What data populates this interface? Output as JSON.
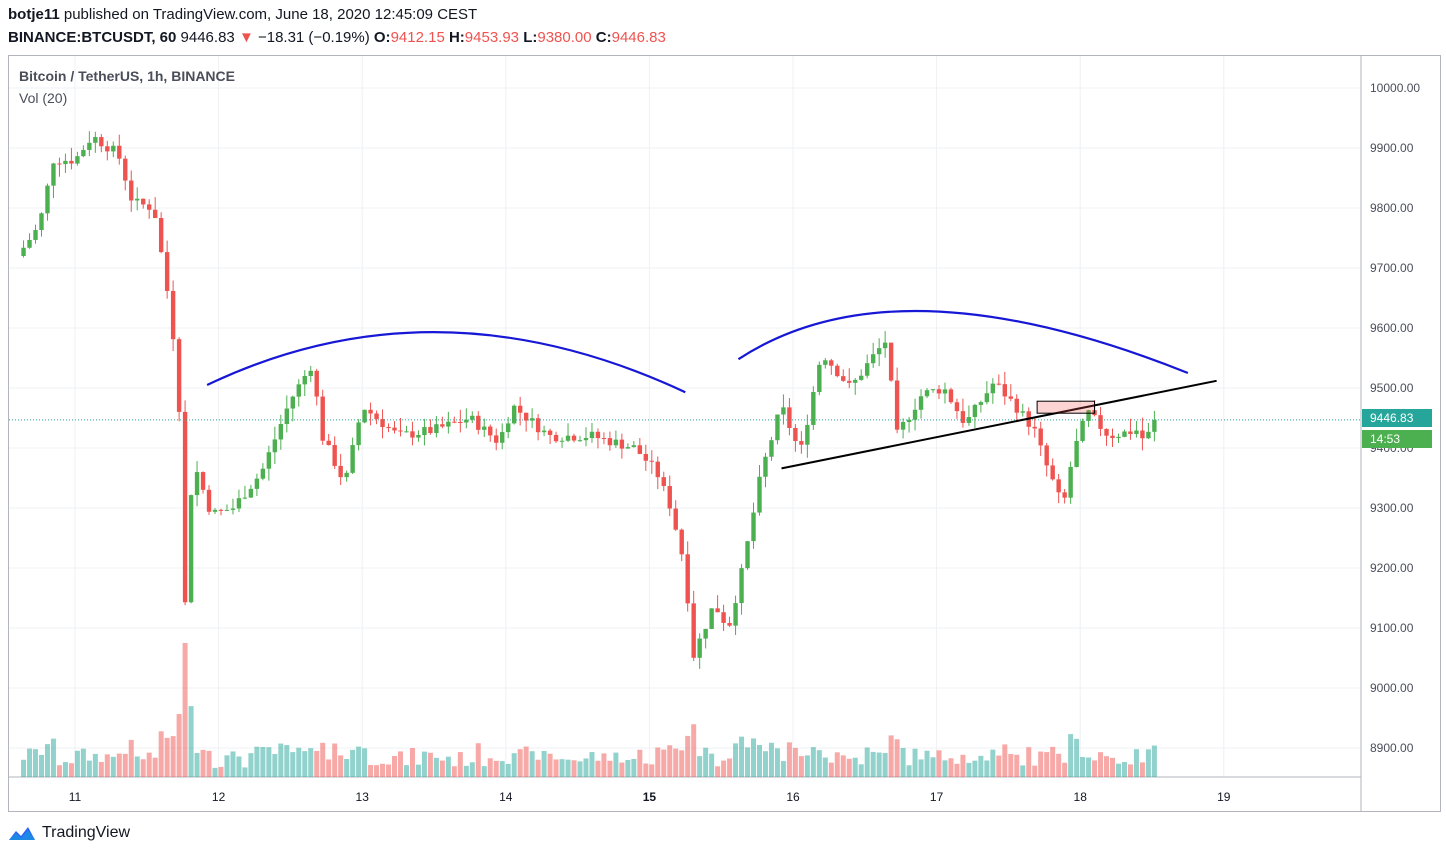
{
  "header": {
    "author": "botje11",
    "published": "published on TradingView.com, June 18, 2020 12:45:09 CEST",
    "symbol": "BINANCE:BTCUSDT, 60",
    "last": "9446.83",
    "arrow": "▼",
    "change": "−18.31 (−0.19%)",
    "o_label": "O:",
    "o_value": "9412.15",
    "h_label": "H:",
    "h_value": "9453.93",
    "l_label": "L:",
    "l_value": "9380.00",
    "c_label": "C:",
    "c_value": "9446.83"
  },
  "legend": {
    "title": "Bitcoin / TetherUS, 1h, BINANCE",
    "volume": "Vol (20)"
  },
  "price_tag": "9446.83",
  "countdown": "14:53",
  "footer": {
    "brand": "TradingView",
    "logo_icon": "tradingview-logo-icon"
  },
  "colors": {
    "up": "#26a69a",
    "down": "#ef5350",
    "up_wick": "#4caf50",
    "arc": "#1717d6",
    "trend": "#000000",
    "grid": "#eef0f3"
  },
  "chart_data": {
    "type": "candlestick",
    "symbol": "BTCUSDT",
    "interval": "1h",
    "x_ticks": [
      "11",
      "12",
      "13",
      "14",
      "15",
      "16",
      "17",
      "18",
      "19"
    ],
    "y_ticks": [
      "10000.00",
      "9900.00",
      "9800.00",
      "9700.00",
      "9600.00",
      "9500.00",
      "9400.00",
      "9300.00",
      "9200.00",
      "9100.00",
      "9000.00",
      "8900.00"
    ],
    "ylim": [
      8850,
      10060
    ],
    "last_price": 9446.83,
    "close_path": [
      {
        "day": 10.6,
        "close": 9720
      },
      {
        "day": 10.75,
        "close": 9770
      },
      {
        "day": 10.85,
        "close": 9880
      },
      {
        "day": 11.0,
        "close": 9880
      },
      {
        "day": 11.12,
        "close": 9920
      },
      {
        "day": 11.3,
        "close": 9890
      },
      {
        "day": 11.4,
        "close": 9810
      },
      {
        "day": 11.55,
        "close": 9800
      },
      {
        "day": 11.65,
        "close": 9650
      },
      {
        "day": 11.72,
        "close": 9520
      },
      {
        "day": 11.76,
        "close": 9110
      },
      {
        "day": 11.82,
        "close": 9380
      },
      {
        "day": 11.95,
        "close": 9290
      },
      {
        "day": 12.1,
        "close": 9300
      },
      {
        "day": 12.3,
        "close": 9360
      },
      {
        "day": 12.5,
        "close": 9480
      },
      {
        "day": 12.65,
        "close": 9540
      },
      {
        "day": 12.72,
        "close": 9420
      },
      {
        "day": 12.88,
        "close": 9340
      },
      {
        "day": 13.0,
        "close": 9470
      },
      {
        "day": 13.25,
        "close": 9420
      },
      {
        "day": 13.5,
        "close": 9430
      },
      {
        "day": 13.75,
        "close": 9450
      },
      {
        "day": 13.95,
        "close": 9410
      },
      {
        "day": 14.05,
        "close": 9470
      },
      {
        "day": 14.3,
        "close": 9420
      },
      {
        "day": 14.6,
        "close": 9420
      },
      {
        "day": 14.9,
        "close": 9400
      },
      {
        "day": 15.05,
        "close": 9360
      },
      {
        "day": 15.15,
        "close": 9300
      },
      {
        "day": 15.25,
        "close": 9200
      },
      {
        "day": 15.3,
        "close": 9050
      },
      {
        "day": 15.45,
        "close": 9140
      },
      {
        "day": 15.55,
        "close": 9100
      },
      {
        "day": 15.65,
        "close": 9200
      },
      {
        "day": 15.78,
        "close": 9360
      },
      {
        "day": 15.92,
        "close": 9470
      },
      {
        "day": 16.05,
        "close": 9390
      },
      {
        "day": 16.2,
        "close": 9560
      },
      {
        "day": 16.4,
        "close": 9500
      },
      {
        "day": 16.55,
        "close": 9550
      },
      {
        "day": 16.65,
        "close": 9580
      },
      {
        "day": 16.72,
        "close": 9420
      },
      {
        "day": 16.9,
        "close": 9490
      },
      {
        "day": 17.05,
        "close": 9500
      },
      {
        "day": 17.2,
        "close": 9440
      },
      {
        "day": 17.4,
        "close": 9510
      },
      {
        "day": 17.55,
        "close": 9470
      },
      {
        "day": 17.68,
        "close": 9430
      },
      {
        "day": 17.75,
        "close": 9380
      },
      {
        "day": 17.88,
        "close": 9300
      },
      {
        "day": 17.95,
        "close": 9390
      },
      {
        "day": 18.05,
        "close": 9460
      },
      {
        "day": 18.2,
        "close": 9420
      },
      {
        "day": 18.4,
        "close": 9430
      },
      {
        "day": 18.45,
        "close": 9410
      },
      {
        "day": 18.52,
        "close": 9446.83
      }
    ],
    "drawings": [
      {
        "type": "arc",
        "from": {
          "day": 11.92,
          "price": 9505
        },
        "peak": {
          "day": 13.55,
          "price": 9593
        },
        "to": {
          "day": 15.25,
          "price": 9493
        }
      },
      {
        "type": "arc",
        "from": {
          "day": 15.62,
          "price": 9548
        },
        "peak": {
          "day": 16.95,
          "price": 9628
        },
        "to": {
          "day": 18.75,
          "price": 9525
        }
      },
      {
        "type": "trendline",
        "from": {
          "day": 15.92,
          "price": 9366
        },
        "to": {
          "day": 18.95,
          "price": 9512
        }
      },
      {
        "type": "rectangle",
        "from": {
          "day": 17.7,
          "price": 9478
        },
        "to": {
          "day": 18.1,
          "price": 9458
        }
      }
    ]
  }
}
